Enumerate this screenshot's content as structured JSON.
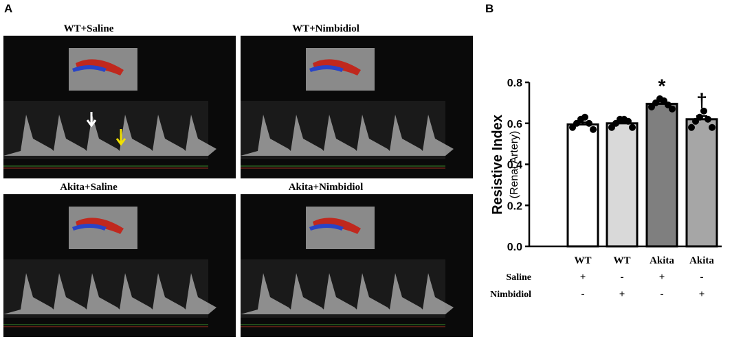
{
  "panel_a": {
    "label": "A",
    "images": [
      {
        "title": "WT+Saline"
      },
      {
        "title": "WT+Nimbidiol"
      },
      {
        "title": "Akita+Saline"
      },
      {
        "title": "Akita+Nimbidiol"
      }
    ]
  },
  "panel_b_label": "B",
  "chart_data": {
    "type": "bar",
    "ylabel": "Resistive Index",
    "ylabel_sub": "(Renal Artery)",
    "categories": [
      "WT",
      "WT",
      "Akita",
      "Akita"
    ],
    "values": [
      0.595,
      0.6,
      0.695,
      0.62
    ],
    "errors": [
      0.01,
      0.01,
      0.01,
      0.015
    ],
    "points": [
      [
        0.58,
        0.6,
        0.62,
        0.63,
        0.6,
        0.57
      ],
      [
        0.58,
        0.6,
        0.62,
        0.62,
        0.61,
        0.58
      ],
      [
        0.68,
        0.7,
        0.72,
        0.71,
        0.69,
        0.67
      ],
      [
        0.58,
        0.61,
        0.63,
        0.66,
        0.62,
        0.58
      ]
    ],
    "colors": [
      "#ffffff",
      "#d9d9d9",
      "#7f7f7f",
      "#a6a6a6"
    ],
    "annotations": [
      null,
      null,
      "*",
      "†"
    ],
    "treatments": [
      {
        "name": "Saline",
        "signs": [
          "+",
          "-",
          "+",
          "-"
        ]
      },
      {
        "name": "Nimbidiol",
        "signs": [
          "-",
          "+",
          "-",
          "+"
        ]
      }
    ],
    "ylim": [
      0,
      0.8
    ],
    "yticks": [
      {
        "value": 0,
        "label": "0.0"
      },
      0.2,
      0.4,
      0.6,
      0.8
    ]
  }
}
